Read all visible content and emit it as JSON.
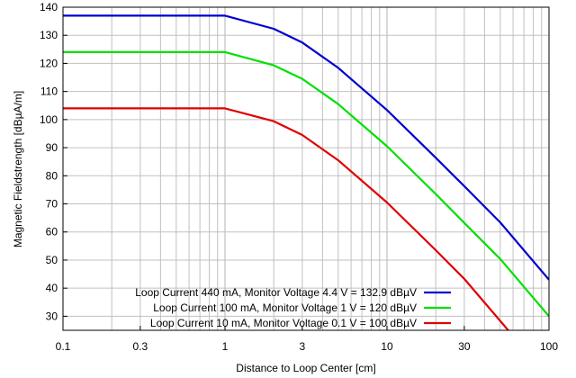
{
  "chart_data": {
    "type": "line",
    "title": "",
    "xlabel": "Distance to Loop Center [cm]",
    "ylabel": "Magnetic Fieldstrength [dBµA/m]",
    "xscale": "log",
    "xlim": [
      0.1,
      100
    ],
    "ylim": [
      25,
      140
    ],
    "grid": true,
    "legend_position": "bottom-right",
    "x_ticks": [
      {
        "value": 0.1,
        "label": "0.1"
      },
      {
        "value": 0.3,
        "label": "0.3"
      },
      {
        "value": 1,
        "label": "1"
      },
      {
        "value": 3,
        "label": "3"
      },
      {
        "value": 10,
        "label": "10"
      },
      {
        "value": 30,
        "label": "30"
      },
      {
        "value": 100,
        "label": "100"
      }
    ],
    "y_ticks": [
      {
        "value": 30,
        "label": "30"
      },
      {
        "value": 40,
        "label": "40"
      },
      {
        "value": 50,
        "label": "50"
      },
      {
        "value": 60,
        "label": "60"
      },
      {
        "value": 70,
        "label": "70"
      },
      {
        "value": 80,
        "label": "80"
      },
      {
        "value": 90,
        "label": "90"
      },
      {
        "value": 100,
        "label": "100"
      },
      {
        "value": 110,
        "label": "110"
      },
      {
        "value": 120,
        "label": "120"
      },
      {
        "value": 130,
        "label": "130"
      },
      {
        "value": 140,
        "label": "140"
      }
    ],
    "series": [
      {
        "name": "Loop Current 440 mA, Monitor Voltage 4.4 V = 132.9 dBµV",
        "color": "#0000d0",
        "x": [
          0.1,
          1,
          2,
          3,
          5,
          10,
          20,
          30,
          50,
          100
        ],
        "y": [
          137,
          137,
          132.3,
          127.4,
          118.4,
          103.4,
          86.4,
          76.3,
          63.4,
          43
        ]
      },
      {
        "name": "Loop Current 100 mA, Monitor Voltage 1 V = 120 dBµV",
        "color": "#00e000",
        "x": [
          0.1,
          1,
          2,
          3,
          5,
          10,
          20,
          30,
          50,
          100
        ],
        "y": [
          124,
          124,
          119.3,
          114.5,
          105.5,
          90.5,
          73.5,
          63.2,
          50.4,
          30
        ]
      },
      {
        "name": "Loop Current 10 mA, Monitor Voltage 0.1 V = 100 dBµV",
        "color": "#e00000",
        "x": [
          0.1,
          1,
          2,
          3,
          5,
          10,
          20,
          30,
          56
        ],
        "y": [
          104,
          104,
          99.4,
          94.5,
          85.5,
          70.5,
          53.5,
          43.3,
          25
        ]
      }
    ]
  }
}
